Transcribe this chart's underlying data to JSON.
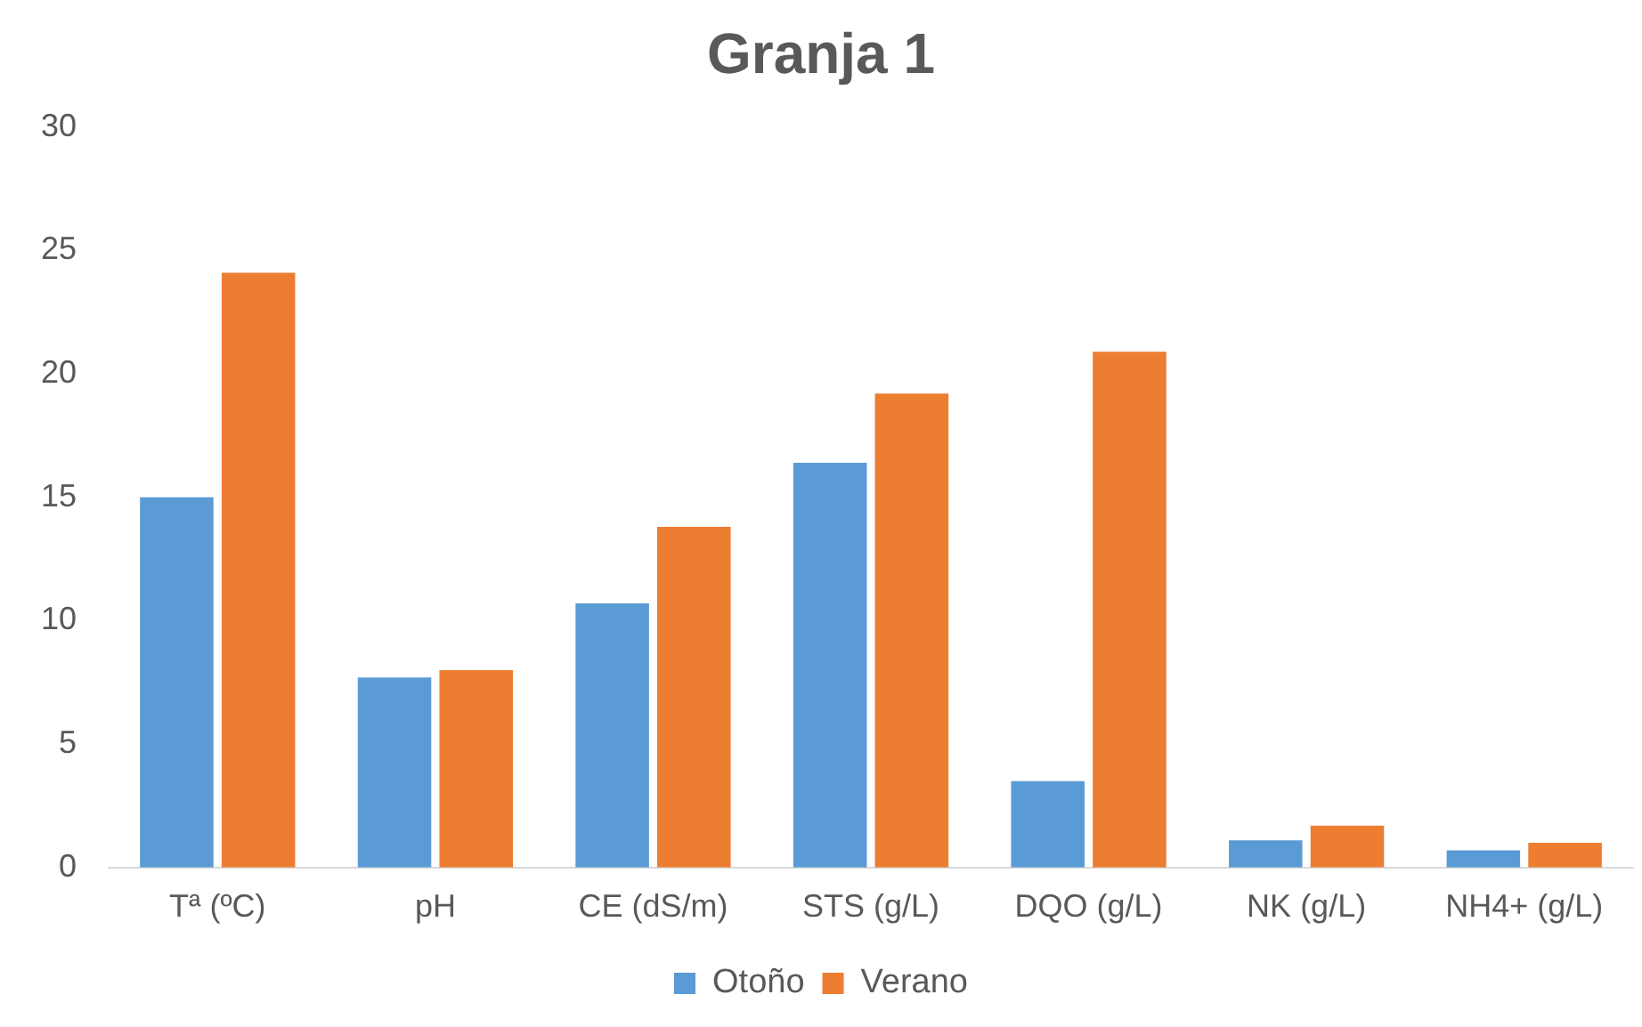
{
  "chart_data": {
    "type": "bar",
    "title": "Granja 1",
    "categories": [
      "Tª (ºC)",
      "pH",
      "CE (dS/m)",
      "STS (g/L)",
      "DQO (g/L)",
      "NK (g/L)",
      "NH4+ (g/L)"
    ],
    "series": [
      {
        "name": "Otoño",
        "color": "#5b9bd5",
        "values": [
          15,
          7.7,
          10.7,
          16.4,
          3.5,
          1.1,
          0.7
        ]
      },
      {
        "name": "Verano",
        "color": "#ed7d31",
        "values": [
          24.1,
          8,
          13.8,
          19.2,
          20.9,
          1.7,
          1
        ]
      }
    ],
    "ylim": [
      0,
      30
    ],
    "yticks": [
      0,
      5,
      10,
      15,
      20,
      25,
      30
    ],
    "grid": false,
    "legend": "bottom"
  }
}
